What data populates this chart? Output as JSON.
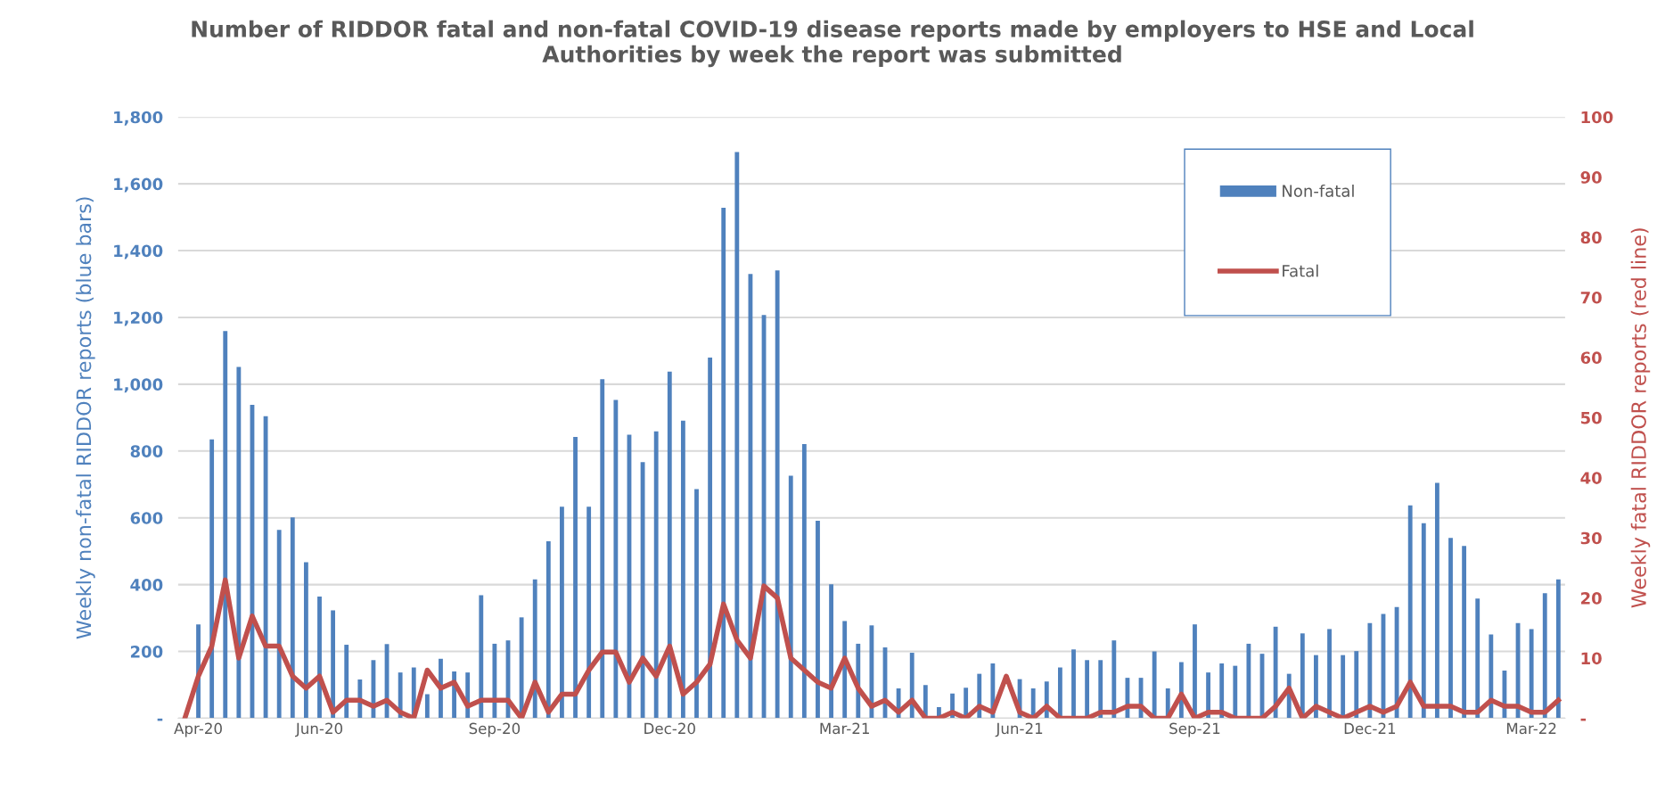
{
  "chart_data": {
    "type": "bar",
    "title": "Number of RIDDOR fatal and non-fatal COVID-19 disease reports made by employers to HSE and Local\nAuthorities by week the report was submitted",
    "ylabel": "Weekly non-fatal RIDDOR reports (blue bars)",
    "y2label": "Weekly fatal RIDDOR reports (red line)",
    "categories": [
      null,
      "Apr-20",
      null,
      null,
      null,
      null,
      null,
      null,
      null,
      null,
      "Jun-20",
      null,
      null,
      null,
      null,
      null,
      null,
      null,
      null,
      null,
      null,
      null,
      null,
      "Sep-20",
      null,
      null,
      null,
      null,
      null,
      null,
      null,
      null,
      null,
      null,
      null,
      null,
      "Dec-20",
      null,
      null,
      null,
      null,
      null,
      null,
      null,
      null,
      null,
      null,
      null,
      null,
      "Mar-21",
      null,
      null,
      null,
      null,
      null,
      null,
      null,
      null,
      null,
      null,
      null,
      null,
      "Jun-21",
      null,
      null,
      null,
      null,
      null,
      null,
      null,
      null,
      null,
      null,
      null,
      null,
      "Sep-21",
      null,
      null,
      null,
      null,
      null,
      null,
      null,
      null,
      null,
      null,
      null,
      null,
      "Dec-21",
      null,
      null,
      null,
      null,
      null,
      null,
      null,
      null,
      null,
      null,
      null,
      "Mar-22",
      null,
      null
    ],
    "series": [
      {
        "name": "Non-fatal",
        "color": "#4f81bd",
        "values": [
          0,
          281,
          835,
          1159,
          1052,
          938,
          904,
          564,
          601,
          467,
          364,
          323,
          220,
          116,
          174,
          222,
          137,
          152,
          72,
          178,
          140,
          137,
          368,
          223,
          233,
          302,
          416,
          530,
          633,
          842,
          633,
          1015,
          953,
          849,
          767,
          859,
          1038,
          891,
          686,
          1080,
          1528,
          1695,
          1330,
          1207,
          1341,
          726,
          821,
          591,
          401,
          291,
          223,
          278,
          212,
          89,
          196,
          99,
          33,
          74,
          91,
          133,
          164,
          null,
          117,
          89,
          110,
          152,
          206,
          174,
          174,
          233,
          121,
          121,
          200,
          89,
          168,
          281,
          137,
          164,
          157,
          223,
          193,
          274,
          133,
          254,
          189,
          267,
          189,
          201,
          285,
          312,
          333,
          637,
          584,
          705,
          540,
          516,
          358,
          251,
          143,
          285,
          267,
          374,
          416
        ]
      },
      {
        "name": "Fatal",
        "type": "line",
        "axis": "y2",
        "color": "#c0504d",
        "values": [
          0,
          7,
          12,
          23,
          10,
          17,
          12,
          12,
          7,
          5,
          7,
          1,
          3,
          3,
          2,
          3,
          1,
          0,
          8,
          5,
          6,
          2,
          3,
          3,
          3,
          0,
          6,
          1,
          4,
          4,
          8,
          11,
          11,
          6,
          10,
          7,
          12,
          4,
          6,
          9,
          19,
          13,
          10,
          22,
          20,
          10,
          8,
          6,
          5,
          10,
          5,
          2,
          3,
          1,
          3,
          0,
          0,
          1,
          0,
          2,
          1,
          7,
          1,
          0,
          2,
          0,
          0,
          0,
          1,
          1,
          2,
          2,
          0,
          0,
          4,
          0,
          1,
          1,
          0,
          0,
          0,
          2,
          5,
          0,
          2,
          1,
          0,
          1,
          2,
          1,
          2,
          6,
          2,
          2,
          2,
          1,
          1,
          3,
          2,
          2,
          1,
          1,
          3
        ]
      }
    ],
    "ylim": [
      0,
      1800
    ],
    "yticks": [
      {
        "value": 0,
        "label": "-"
      },
      200,
      400,
      600,
      800,
      {
        "value": 1000,
        "label": "1,000"
      },
      {
        "value": 1200,
        "label": "1,200"
      },
      {
        "value": 1400,
        "label": "1,400"
      },
      {
        "value": 1600,
        "label": "1,600"
      },
      {
        "value": 1800,
        "label": "1,800"
      }
    ],
    "y2lim": [
      0,
      100
    ],
    "y2ticks": [
      {
        "value": 0,
        "label": "-"
      },
      10,
      20,
      30,
      40,
      50,
      60,
      70,
      80,
      90,
      100
    ],
    "grid": "y",
    "legend": "top right",
    "line_style": "solid",
    "marker": "none"
  }
}
